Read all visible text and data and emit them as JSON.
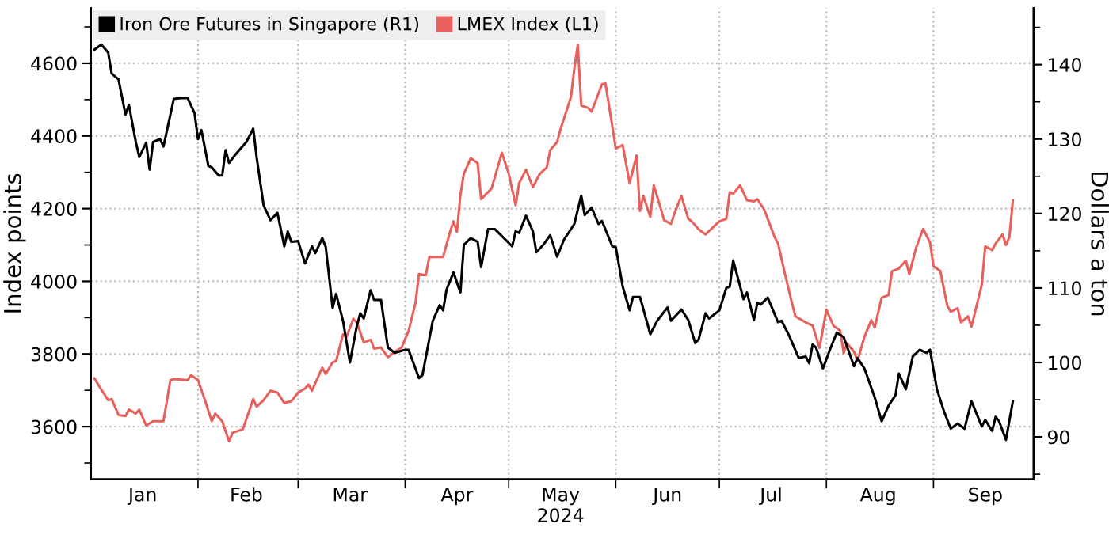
{
  "chart_data": {
    "type": "line",
    "ylabel": "Index points",
    "y2label": "Dollars a ton",
    "legend": "top left",
    "grid": true,
    "line_style": "solid",
    "xlim": [
      "2024-01-01",
      "2024-09-30"
    ],
    "xticks": [
      {
        "value": "2024-02-01",
        "label": null
      },
      {
        "value": "2024-03-01",
        "label": null
      },
      {
        "value": "2024-04-01",
        "label": null
      },
      {
        "value": "2024-05-01",
        "label": null
      },
      {
        "value": "2024-06-01",
        "label": null
      },
      {
        "value": "2024-07-01",
        "label": null
      },
      {
        "value": "2024-08-01",
        "label": null
      },
      {
        "value": "2024-09-01",
        "label": null
      },
      {
        "value": "2024-01-16",
        "label": "Jan"
      },
      {
        "value": "2024-02-15",
        "label": "Feb"
      },
      {
        "value": "2024-03-16",
        "label": "Mar"
      },
      {
        "value": "2024-04-16",
        "label": "Apr"
      },
      {
        "value": "2024-05-16",
        "label": "May\n2024"
      },
      {
        "value": "2024-06-16",
        "label": "Jun"
      },
      {
        "value": "2024-07-16",
        "label": "Jul"
      },
      {
        "value": "2024-08-16",
        "label": "Aug"
      },
      {
        "value": "2024-09-16",
        "label": "Sep"
      }
    ],
    "ylim": [
      3455,
      4752
    ],
    "yticks": [
      {
        "value": 3500,
        "label": null
      },
      3600,
      {
        "value": 3700,
        "label": null
      },
      3800,
      {
        "value": 3900,
        "label": null
      },
      4000,
      {
        "value": 4100,
        "label": null
      },
      4200,
      {
        "value": 4300,
        "label": null
      },
      4400,
      {
        "value": 4500,
        "label": null
      },
      4600,
      {
        "value": 4700,
        "label": null
      }
    ],
    "y2lim": [
      84.3,
      147.6
    ],
    "y2ticks": [
      {
        "value": 85,
        "label": null
      },
      90,
      {
        "value": 95,
        "label": null
      },
      100,
      {
        "value": 105,
        "label": null
      },
      110,
      {
        "value": 115,
        "label": null
      },
      120,
      {
        "value": 125,
        "label": null
      },
      130,
      {
        "value": 135,
        "label": null
      },
      140,
      {
        "value": 145,
        "label": null
      }
    ],
    "series": [
      {
        "name": "Iron Ore Futures in Singapore (R1)",
        "color": "#000000",
        "axis": "y2",
        "x": [
          "2024-01-02",
          "2024-01-04",
          "2024-01-06",
          "2024-01-07",
          "2024-01-09",
          "2024-01-11",
          "2024-01-12",
          "2024-01-14",
          "2024-01-15",
          "2024-01-17",
          "2024-01-18",
          "2024-01-19",
          "2024-01-21",
          "2024-01-22",
          "2024-01-25",
          "2024-01-27",
          "2024-01-29",
          "2024-01-31",
          "2024-02-01",
          "2024-02-02",
          "2024-02-04",
          "2024-02-05",
          "2024-02-07",
          "2024-02-08",
          "2024-02-09",
          "2024-02-10",
          "2024-02-12",
          "2024-02-15",
          "2024-02-17",
          "2024-02-18",
          "2024-02-20",
          "2024-02-22",
          "2024-02-24",
          "2024-02-26",
          "2024-02-27",
          "2024-02-28",
          "2024-03-01",
          "2024-03-03",
          "2024-03-05",
          "2024-03-06",
          "2024-03-08",
          "2024-03-09",
          "2024-03-11",
          "2024-03-12",
          "2024-03-14",
          "2024-03-16",
          "2024-03-18",
          "2024-03-19",
          "2024-03-20",
          "2024-03-22",
          "2024-03-23",
          "2024-03-25",
          "2024-03-27",
          "2024-03-29",
          "2024-04-01",
          "2024-04-02",
          "2024-04-05",
          "2024-04-06",
          "2024-04-09",
          "2024-04-11",
          "2024-04-12",
          "2024-04-13",
          "2024-04-15",
          "2024-04-17",
          "2024-04-18",
          "2024-04-20",
          "2024-04-22",
          "2024-04-23",
          "2024-04-25",
          "2024-04-27",
          "2024-05-02",
          "2024-05-03",
          "2024-05-04",
          "2024-05-06",
          "2024-05-08",
          "2024-05-09",
          "2024-05-11",
          "2024-05-13",
          "2024-05-15",
          "2024-05-17",
          "2024-05-20",
          "2024-05-22",
          "2024-05-23",
          "2024-05-25",
          "2024-05-27",
          "2024-05-28",
          "2024-05-31",
          "2024-06-01",
          "2024-06-03",
          "2024-06-05",
          "2024-06-06",
          "2024-06-08",
          "2024-06-11",
          "2024-06-13",
          "2024-06-16",
          "2024-06-17",
          "2024-06-20",
          "2024-06-22",
          "2024-06-24",
          "2024-06-25",
          "2024-06-27",
          "2024-06-28",
          "2024-07-01",
          "2024-07-03",
          "2024-07-04",
          "2024-07-05",
          "2024-07-08",
          "2024-07-09",
          "2024-07-11",
          "2024-07-12",
          "2024-07-13",
          "2024-07-15",
          "2024-07-18",
          "2024-07-19",
          "2024-07-21",
          "2024-07-24",
          "2024-07-26",
          "2024-07-27",
          "2024-07-28",
          "2024-07-29",
          "2024-07-31",
          "2024-08-02",
          "2024-08-04",
          "2024-08-06",
          "2024-08-09",
          "2024-08-10",
          "2024-08-12",
          "2024-08-15",
          "2024-08-17",
          "2024-08-19",
          "2024-08-21",
          "2024-08-22",
          "2024-08-24",
          "2024-08-26",
          "2024-08-28",
          "2024-08-30",
          "2024-08-31",
          "2024-09-02",
          "2024-09-04",
          "2024-09-06",
          "2024-09-08",
          "2024-09-10",
          "2024-09-12",
          "2024-09-15",
          "2024-09-16",
          "2024-09-18",
          "2024-09-19",
          "2024-09-20",
          "2024-09-22",
          "2024-09-24"
        ],
        "values": [
          142.0,
          142.7,
          141.6,
          138.8,
          138.0,
          133.3,
          134.6,
          129.6,
          127.6,
          129.5,
          125.9,
          129.6,
          130.0,
          129.0,
          135.4,
          135.5,
          135.5,
          133.5,
          130.0,
          131.2,
          126.4,
          126.2,
          125.1,
          125.1,
          128.5,
          126.8,
          128.0,
          129.6,
          131.4,
          127.5,
          121.1,
          119.1,
          120.1,
          115.6,
          117.6,
          116.2,
          116.3,
          113.3,
          115.6,
          114.7,
          116.7,
          115.5,
          107.3,
          109.2,
          105.6,
          100.0,
          104.9,
          106.6,
          105.9,
          109.7,
          108.4,
          108.4,
          102.0,
          101.3,
          101.7,
          101.7,
          97.9,
          98.3,
          105.6,
          107.7,
          107.0,
          109.8,
          112.1,
          109.4,
          115.8,
          116.7,
          116.2,
          112.8,
          117.9,
          117.9,
          115.6,
          117.6,
          117.4,
          119.7,
          117.6,
          114.8,
          115.8,
          117.1,
          114.2,
          116.5,
          118.6,
          122.4,
          119.8,
          120.8,
          118.6,
          119.0,
          115.6,
          115.5,
          110.2,
          107.0,
          108.8,
          108.8,
          103.8,
          105.6,
          107.4,
          105.6,
          107.1,
          105.7,
          102.6,
          103.1,
          106.6,
          105.9,
          107.0,
          110.0,
          110.2,
          113.7,
          108.5,
          109.4,
          105.7,
          108.0,
          107.8,
          108.7,
          105.4,
          105.6,
          103.8,
          100.6,
          100.8,
          99.9,
          102.4,
          102.0,
          99.2,
          101.7,
          104.0,
          103.4,
          99.5,
          100.6,
          99.2,
          95.3,
          92.1,
          94.2,
          95.6,
          98.5,
          96.4,
          100.8,
          101.7,
          101.3,
          101.7,
          96.4,
          93.5,
          91.1,
          91.8,
          91.1,
          94.8,
          91.4,
          92.3,
          90.8,
          92.7,
          92.1,
          89.6,
          94.8
        ]
      },
      {
        "name": "LMEX Index (L1)",
        "color": "#e8605c",
        "axis": "y",
        "x": [
          "2024-01-02",
          "2024-01-04",
          "2024-01-06",
          "2024-01-07",
          "2024-01-09",
          "2024-01-11",
          "2024-01-12",
          "2024-01-14",
          "2024-01-15",
          "2024-01-17",
          "2024-01-19",
          "2024-01-22",
          "2024-01-24",
          "2024-01-25",
          "2024-01-29",
          "2024-01-30",
          "2024-02-01",
          "2024-02-03",
          "2024-02-05",
          "2024-02-06",
          "2024-02-08",
          "2024-02-10",
          "2024-02-11",
          "2024-02-14",
          "2024-02-17",
          "2024-02-18",
          "2024-02-20",
          "2024-02-22",
          "2024-02-24",
          "2024-02-26",
          "2024-02-28",
          "2024-03-01",
          "2024-03-03",
          "2024-03-04",
          "2024-03-05",
          "2024-03-08",
          "2024-03-09",
          "2024-03-11",
          "2024-03-12",
          "2024-03-14",
          "2024-03-15",
          "2024-03-17",
          "2024-03-18",
          "2024-03-20",
          "2024-03-22",
          "2024-03-23",
          "2024-03-25",
          "2024-03-27",
          "2024-03-29",
          "2024-03-31",
          "2024-04-02",
          "2024-04-04",
          "2024-04-05",
          "2024-04-07",
          "2024-04-08",
          "2024-04-12",
          "2024-04-14",
          "2024-04-15",
          "2024-04-16",
          "2024-04-17",
          "2024-04-18",
          "2024-04-20",
          "2024-04-22",
          "2024-04-23",
          "2024-04-26",
          "2024-04-27",
          "2024-04-29",
          "2024-05-01",
          "2024-05-03",
          "2024-05-04",
          "2024-05-06",
          "2024-05-08",
          "2024-05-10",
          "2024-05-12",
          "2024-05-13",
          "2024-05-15",
          "2024-05-16",
          "2024-05-19",
          "2024-05-20",
          "2024-05-21",
          "2024-05-22",
          "2024-05-24",
          "2024-05-25",
          "2024-05-28",
          "2024-05-29",
          "2024-05-31",
          "2024-06-01",
          "2024-06-03",
          "2024-06-05",
          "2024-06-07",
          "2024-06-08",
          "2024-06-09",
          "2024-06-11",
          "2024-06-12",
          "2024-06-14",
          "2024-06-15",
          "2024-06-17",
          "2024-06-18",
          "2024-06-20",
          "2024-06-22",
          "2024-06-23",
          "2024-06-25",
          "2024-06-27",
          "2024-07-01",
          "2024-07-03",
          "2024-07-04",
          "2024-07-05",
          "2024-07-07",
          "2024-07-09",
          "2024-07-11",
          "2024-07-12",
          "2024-07-14",
          "2024-07-17",
          "2024-07-18",
          "2024-07-20",
          "2024-07-22",
          "2024-07-23",
          "2024-07-26",
          "2024-07-28",
          "2024-07-30",
          "2024-08-01",
          "2024-08-03",
          "2024-08-05",
          "2024-08-06",
          "2024-08-07",
          "2024-08-09",
          "2024-08-10",
          "2024-08-12",
          "2024-08-14",
          "2024-08-15",
          "2024-08-17",
          "2024-08-19",
          "2024-08-20",
          "2024-08-22",
          "2024-08-24",
          "2024-08-25",
          "2024-08-27",
          "2024-08-29",
          "2024-08-31",
          "2024-09-01",
          "2024-09-03",
          "2024-09-05",
          "2024-09-06",
          "2024-09-08",
          "2024-09-09",
          "2024-09-11",
          "2024-09-12",
          "2024-09-15",
          "2024-09-16",
          "2024-09-18",
          "2024-09-19",
          "2024-09-21",
          "2024-09-22",
          "2024-09-23",
          "2024-09-24"
        ],
        "values": [
          3733,
          3702,
          3673,
          3676,
          3632,
          3629,
          3647,
          3636,
          3647,
          3603,
          3615,
          3615,
          3728,
          3731,
          3728,
          3742,
          3728,
          3673,
          3615,
          3636,
          3615,
          3560,
          3583,
          3593,
          3676,
          3655,
          3673,
          3699,
          3694,
          3665,
          3670,
          3694,
          3705,
          3716,
          3699,
          3762,
          3745,
          3777,
          3781,
          3854,
          3847,
          3897,
          3887,
          3832,
          3839,
          3815,
          3818,
          3791,
          3806,
          3818,
          3864,
          3941,
          4020,
          4017,
          4067,
          4067,
          4136,
          4165,
          4136,
          4238,
          4296,
          4339,
          4325,
          4226,
          4255,
          4287,
          4354,
          4296,
          4209,
          4270,
          4307,
          4259,
          4296,
          4313,
          4361,
          4383,
          4419,
          4506,
          4586,
          4651,
          4484,
          4477,
          4467,
          4542,
          4545,
          4426,
          4365,
          4375,
          4270,
          4346,
          4194,
          4235,
          4177,
          4264,
          4201,
          4168,
          4158,
          4187,
          4235,
          4172,
          4165,
          4143,
          4129,
          4165,
          4172,
          4245,
          4241,
          4264,
          4223,
          4220,
          4226,
          4197,
          4122,
          4104,
          4020,
          3941,
          3904,
          3887,
          3878,
          3817,
          3922,
          3878,
          3864,
          3803,
          3829,
          3806,
          3781,
          3847,
          3893,
          3873,
          3955,
          3962,
          4028,
          4035,
          4057,
          4020,
          4093,
          4144,
          4107,
          4042,
          4028,
          3933,
          3916,
          3926,
          3887,
          3904,
          3875,
          3991,
          4096,
          4086,
          4104,
          4129,
          4100,
          4122,
          4223
        ]
      }
    ]
  }
}
